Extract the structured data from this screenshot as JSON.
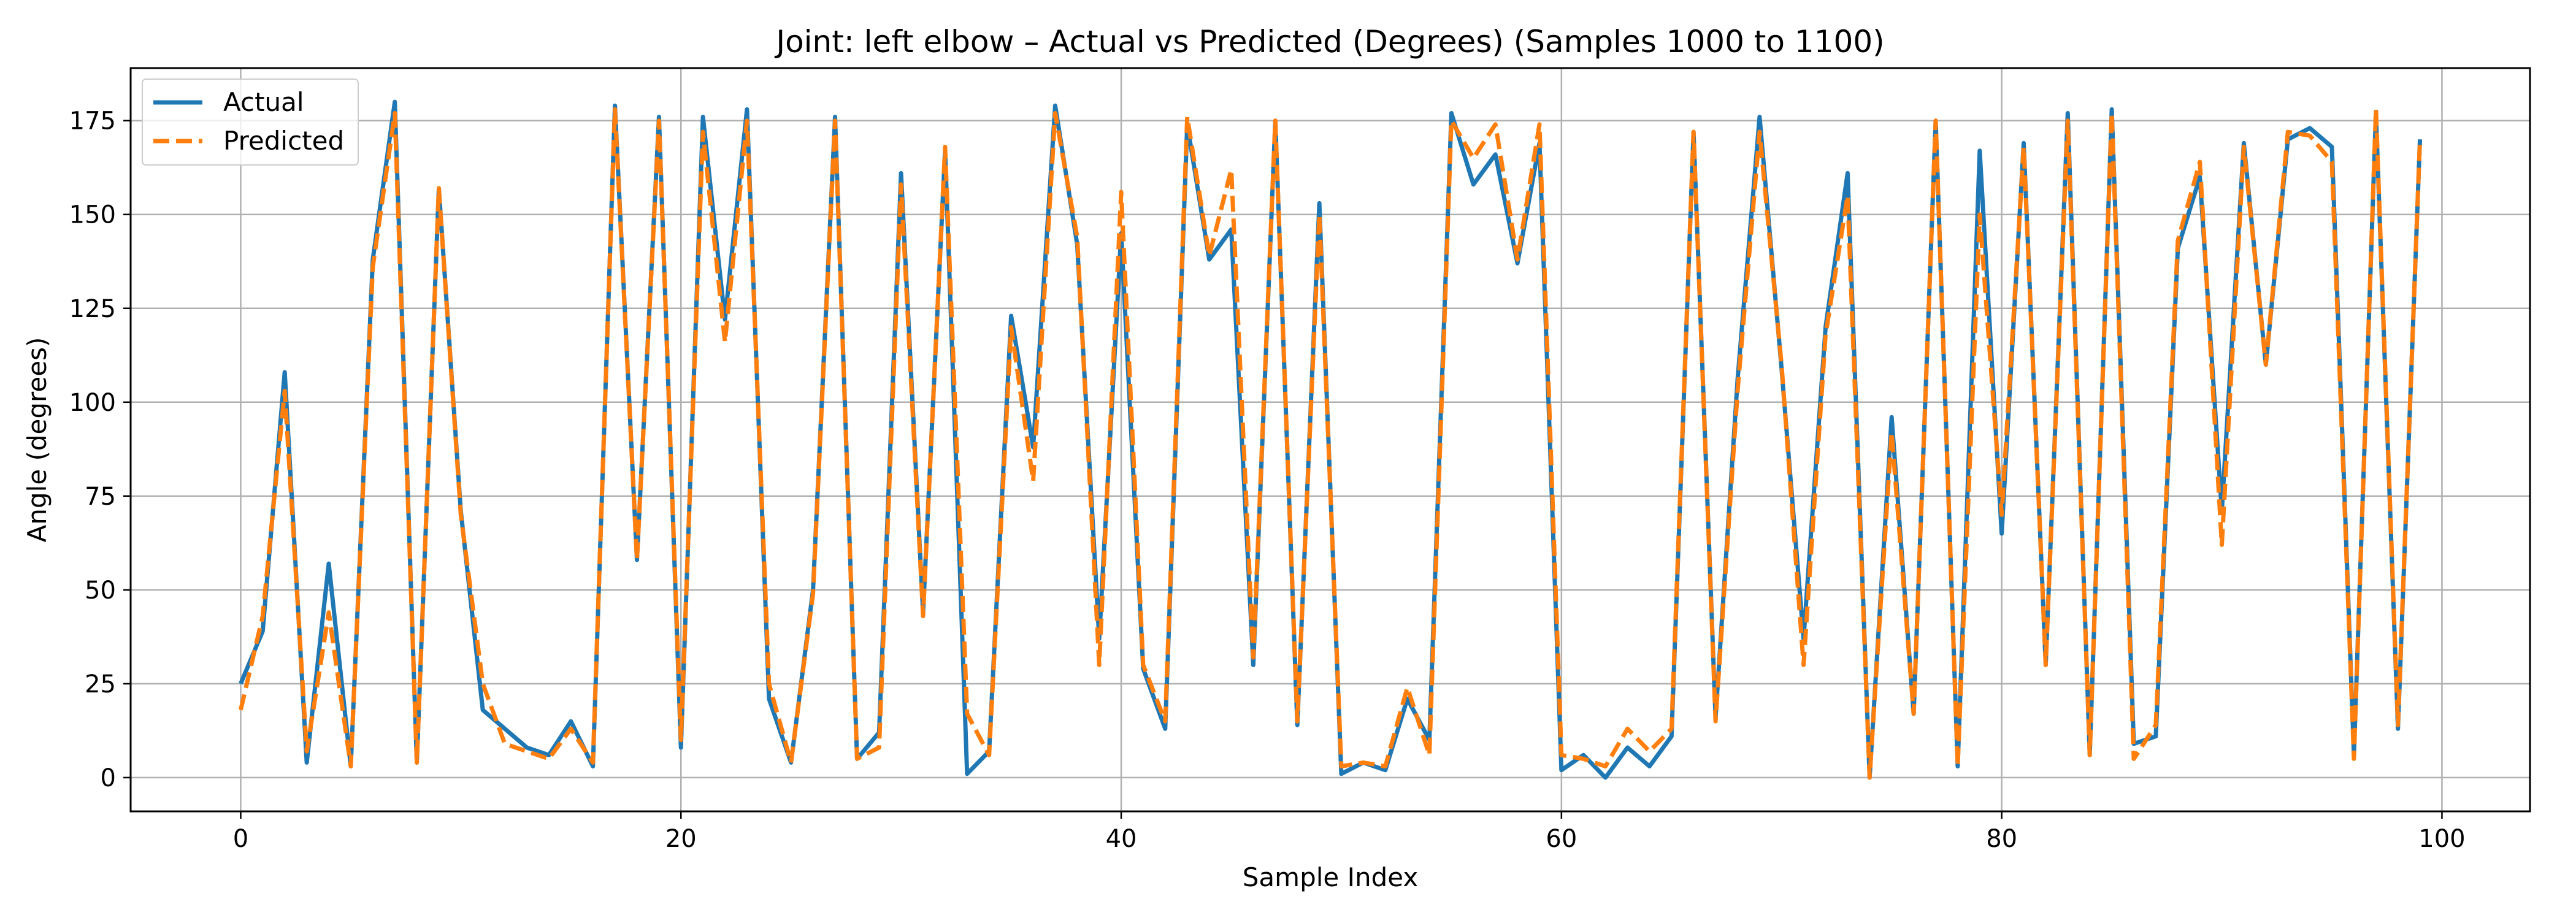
{
  "chart_data": {
    "type": "line",
    "title": "Joint: left elbow – Actual vs Predicted (Degrees) (Samples 1000 to 1100)",
    "xlabel": "Sample Index",
    "ylabel": "Angle (degrees)",
    "xlim": [
      -5,
      104
    ],
    "ylim": [
      -9,
      189
    ],
    "xticks": [
      0,
      20,
      40,
      60,
      80,
      100
    ],
    "yticks": [
      0,
      25,
      50,
      75,
      100,
      125,
      150,
      175
    ],
    "grid": true,
    "legend_position": "top-left",
    "x": [
      0,
      1,
      2,
      3,
      4,
      5,
      6,
      7,
      8,
      9,
      10,
      11,
      12,
      13,
      14,
      15,
      16,
      17,
      18,
      19,
      20,
      21,
      22,
      23,
      24,
      25,
      26,
      27,
      28,
      29,
      30,
      31,
      32,
      33,
      34,
      35,
      36,
      37,
      38,
      39,
      40,
      41,
      42,
      43,
      44,
      45,
      46,
      47,
      48,
      49,
      50,
      51,
      52,
      53,
      54,
      55,
      56,
      57,
      58,
      59,
      60,
      61,
      62,
      63,
      64,
      65,
      66,
      67,
      68,
      69,
      70,
      71,
      72,
      73,
      74,
      75,
      76,
      77,
      78,
      79,
      80,
      81,
      82,
      83,
      84,
      85,
      86,
      87,
      88,
      89,
      90,
      91,
      92,
      93,
      94,
      95,
      96,
      97,
      98,
      99
    ],
    "series": [
      {
        "name": "Actual",
        "color": "#1f77b4",
        "dash": "solid",
        "values": [
          25,
          39,
          108,
          4,
          57,
          3,
          138,
          180,
          4,
          157,
          71,
          18,
          13,
          8,
          6,
          15,
          3,
          179,
          58,
          176,
          8,
          176,
          122,
          178,
          21,
          4,
          50,
          176,
          5,
          12,
          161,
          44,
          167,
          1,
          7,
          123,
          88,
          179,
          142,
          37,
          145,
          29,
          13,
          174,
          138,
          146,
          30,
          175,
          14,
          153,
          1,
          4,
          2,
          21,
          10,
          177,
          158,
          166,
          137,
          169,
          2,
          6,
          0,
          8,
          3,
          11,
          172,
          16,
          106,
          176,
          109,
          37,
          120,
          161,
          0,
          96,
          17,
          175,
          3,
          167,
          65,
          169,
          30,
          177,
          6,
          178,
          9,
          11,
          141,
          160,
          71,
          169,
          110,
          170,
          173,
          168,
          6,
          177,
          13,
          170
        ]
      },
      {
        "name": "Predicted",
        "color": "#ff7f0e",
        "dash": "dashed",
        "values": [
          18,
          43,
          103,
          7,
          44,
          3,
          136,
          177,
          4,
          157,
          70,
          25,
          9,
          7,
          5,
          13,
          4,
          178,
          58,
          175,
          10,
          172,
          116,
          175,
          25,
          4,
          49,
          175,
          5,
          8,
          158,
          43,
          168,
          17,
          6,
          120,
          79,
          177,
          144,
          30,
          156,
          30,
          15,
          176,
          139,
          162,
          32,
          175,
          15,
          150,
          3,
          4,
          3,
          24,
          6,
          175,
          165,
          174,
          138,
          174,
          6,
          5,
          3,
          13,
          7,
          13,
          172,
          15,
          103,
          172,
          110,
          30,
          118,
          155,
          0,
          92,
          17,
          175,
          3,
          150,
          70,
          168,
          30,
          175,
          6,
          177,
          5,
          14,
          143,
          164,
          62,
          168,
          110,
          172,
          171,
          164,
          5,
          178,
          14,
          170
        ]
      }
    ]
  }
}
